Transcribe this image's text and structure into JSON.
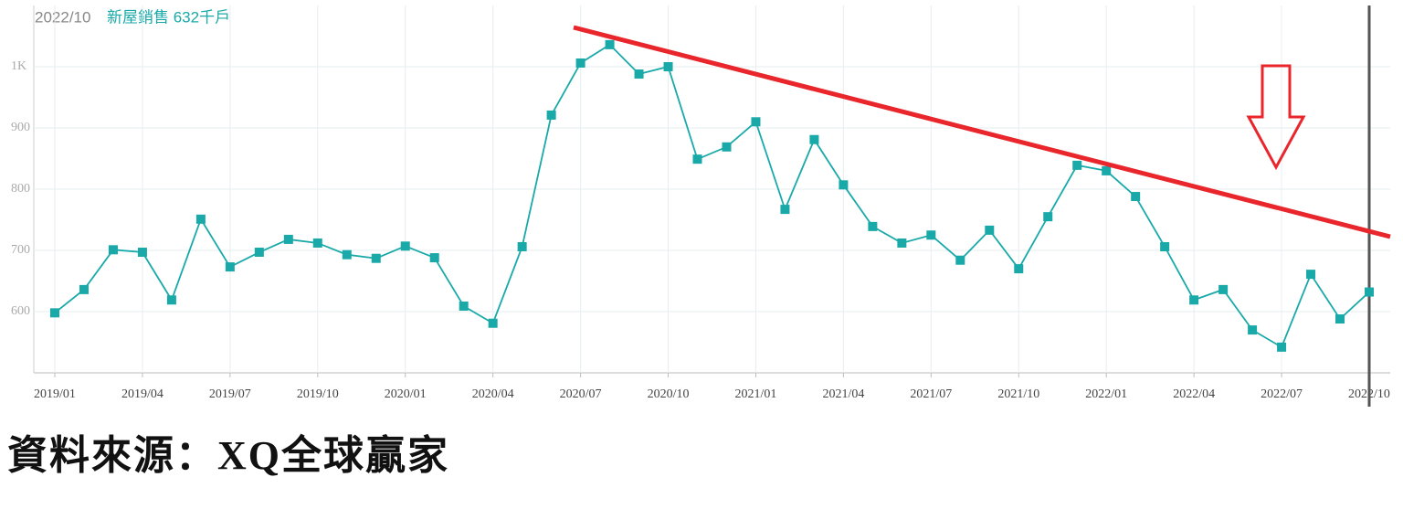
{
  "chart_data": {
    "type": "line",
    "header_date": "2022/10",
    "title": "新屋銷售 632千戶",
    "color": "#1aa9a9",
    "categories": [
      "2019/01",
      null,
      null,
      "2019/04",
      null,
      null,
      "2019/07",
      null,
      null,
      "2019/10",
      null,
      null,
      "2020/01",
      null,
      null,
      "2020/04",
      null,
      null,
      "2020/07",
      null,
      null,
      "2020/10",
      null,
      null,
      "2021/01",
      null,
      null,
      "2021/04",
      null,
      null,
      "2021/07",
      null,
      null,
      "2021/10",
      null,
      null,
      "2022/01",
      null,
      null,
      "2022/04",
      null,
      null,
      "2022/07",
      null,
      null,
      "2022/10"
    ],
    "values": [
      598,
      636,
      701,
      697,
      619,
      751,
      673,
      697,
      718,
      712,
      693,
      687,
      707,
      688,
      609,
      581,
      706,
      921,
      1006,
      1036,
      988,
      1000,
      849,
      869,
      910,
      767,
      881,
      807,
      739,
      712,
      725,
      684,
      733,
      670,
      755,
      839,
      830,
      788,
      706,
      619,
      636,
      570,
      542,
      661,
      588,
      632
    ],
    "ylim": [
      500,
      1100
    ],
    "yticks": [
      600,
      700,
      800,
      900,
      {
        "value": 1000,
        "label": "1K"
      }
    ],
    "grid": true
  },
  "source": "資料來源：XQ全球贏家"
}
